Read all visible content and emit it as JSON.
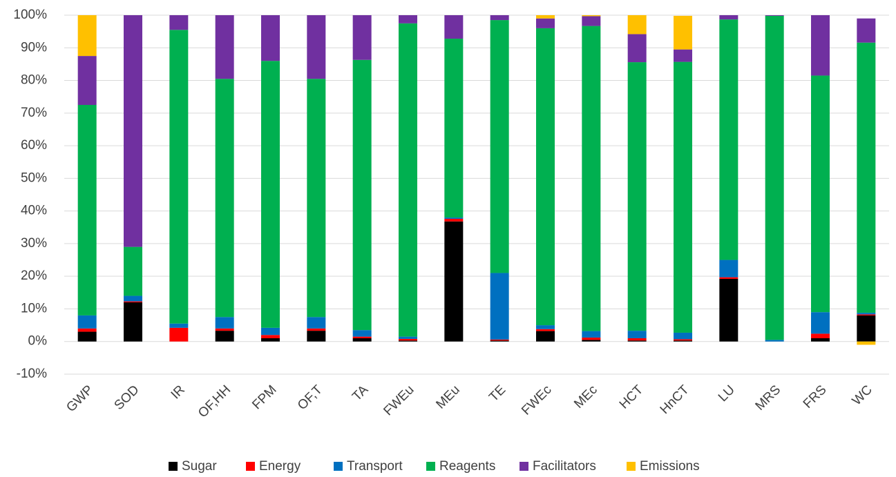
{
  "chart_data": {
    "type": "stacked_bar",
    "categories": [
      "GWP",
      "SOD",
      "IR",
      "OF,HH",
      "FPM",
      "OF,T",
      "TA",
      "FWEu",
      "MEu",
      "TE",
      "FWEc",
      "MEc",
      "HCT",
      "HnCT",
      "LU",
      "MRS",
      "FRS",
      "WC"
    ],
    "series": [
      {
        "name": "Sugar",
        "color": "#000000",
        "values": [
          3,
          12,
          0,
          3.3,
          1,
          3.3,
          1,
          0.3,
          36.8,
          0.3,
          3.2,
          0.5,
          0.3,
          0.3,
          19.2,
          0,
          1,
          8
        ]
      },
      {
        "name": "Energy",
        "color": "#ff0000",
        "values": [
          1,
          0.3,
          4.2,
          0.7,
          1,
          0.7,
          0.5,
          0.5,
          0.8,
          0.3,
          0.6,
          0.7,
          0.7,
          0.4,
          0.5,
          0,
          1.4,
          0.3
        ]
      },
      {
        "name": "Transport",
        "color": "#0070c0",
        "values": [
          4,
          1.7,
          1.3,
          3.5,
          2.2,
          3.5,
          2,
          0.7,
          0.4,
          20.4,
          1.2,
          2,
          2.3,
          2,
          5.3,
          0.5,
          6.6,
          0.5
        ]
      },
      {
        "name": "Reagents",
        "color": "#00b050",
        "values": [
          64.5,
          15,
          90,
          73,
          81.8,
          73,
          82.8,
          96,
          54.8,
          77.5,
          91,
          93.5,
          82.3,
          83,
          73.7,
          99.3,
          72.5,
          82.8
        ]
      },
      {
        "name": "Facilitators",
        "color": "#7030a0",
        "values": [
          15,
          71,
          4.5,
          19.5,
          14,
          19.5,
          13.7,
          2.5,
          7.2,
          1.5,
          3,
          3,
          8.6,
          3.8,
          1.3,
          0.2,
          18.5,
          7.4
        ]
      },
      {
        "name": "Emissions",
        "color": "#ffc000",
        "values": [
          12.5,
          0,
          0,
          0,
          0,
          0,
          0,
          0,
          0,
          0,
          1,
          0.3,
          5.8,
          10.3,
          0,
          0,
          0,
          -1
        ]
      }
    ],
    "ylim": [
      -10,
      100
    ],
    "yticks": [
      {
        "value": -10,
        "label": "-10%"
      },
      {
        "value": 0,
        "label": "0%"
      },
      {
        "value": 10,
        "label": "10%"
      },
      {
        "value": 20,
        "label": "20%"
      },
      {
        "value": 30,
        "label": "30%"
      },
      {
        "value": 40,
        "label": "40%"
      },
      {
        "value": 50,
        "label": "50%"
      },
      {
        "value": 60,
        "label": "60%"
      },
      {
        "value": 70,
        "label": "70%"
      },
      {
        "value": 80,
        "label": "80%"
      },
      {
        "value": 90,
        "label": "90%"
      },
      {
        "value": 100,
        "label": "100%"
      }
    ],
    "grid": true,
    "legend": "bottom"
  }
}
